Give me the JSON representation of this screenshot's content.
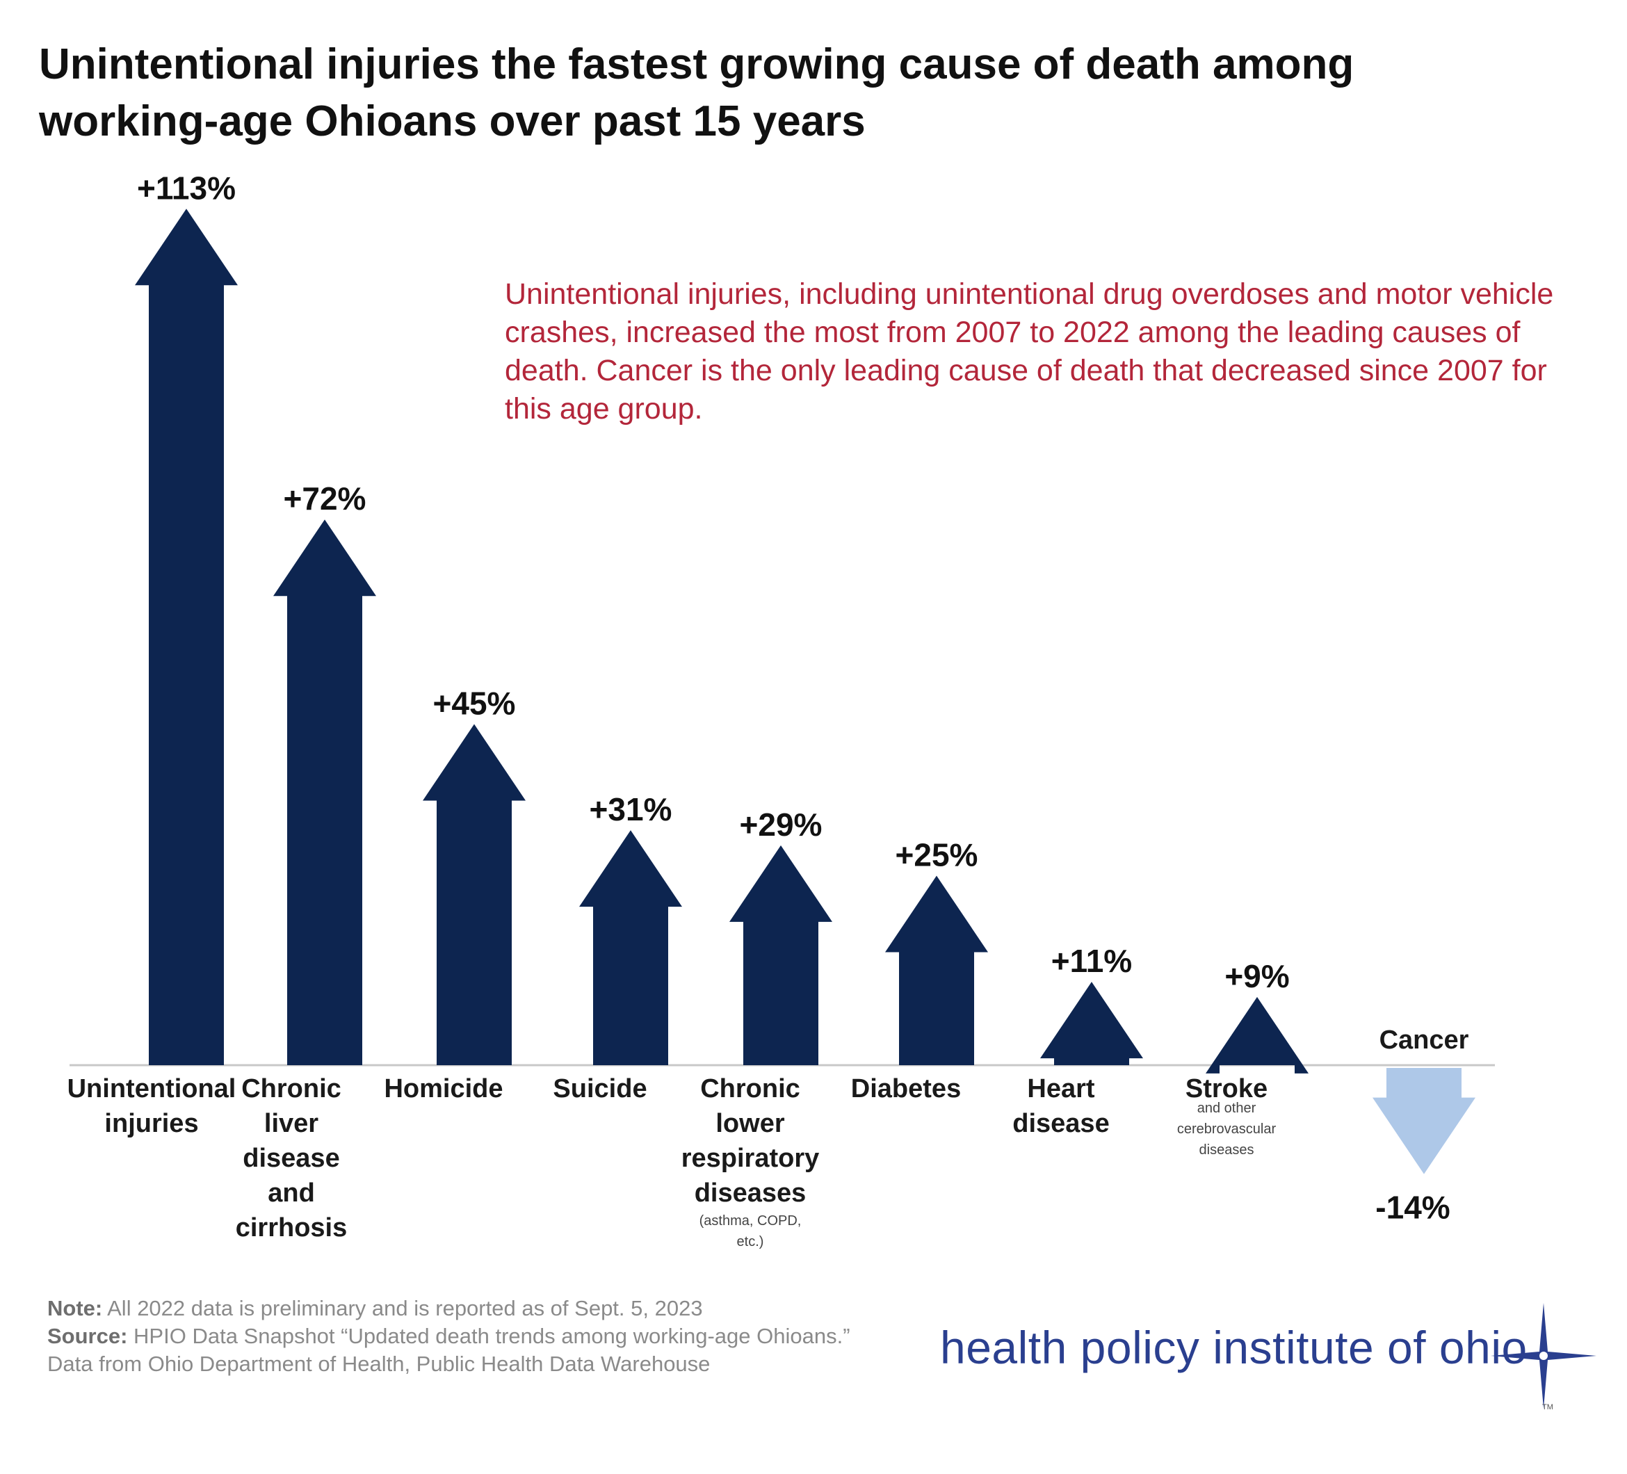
{
  "title": "Unintentional injuries the fastest growing cause of death among working-age Ohioans over past 15 years",
  "annotation": "Unintentional injuries, including unintentional drug overdoses and motor vehicle crashes, increased the most from 2007 to 2022 among the leading causes of death. Cancer is the only leading cause of death that decreased since 2007 for this age group.",
  "note": {
    "label": "Note:",
    "text": "All 2022 data is preliminary and is reported as of Sept. 5, 2023"
  },
  "source": {
    "label": "Source:",
    "text": "HPIO Data Snapshot “Updated death trends among working-age Ohioans.” Data from Ohio Department of Health, Public Health Data Warehouse"
  },
  "logo": {
    "text": "health policy institute of ohio",
    "trademark": "TM",
    "color": "#2a3f8f"
  },
  "colors": {
    "increase": "#0d2550",
    "decrease": "#aec8e8",
    "annotation": "#b3263a"
  },
  "chart_data": {
    "type": "bar",
    "title": "Unintentional injuries the fastest growing cause of death among working-age Ohioans over past 15 years",
    "xlabel": "",
    "ylabel": "",
    "categories": [
      {
        "name": "Unintentional injuries",
        "lines": [
          "Unintentional",
          "injuries"
        ],
        "sub": []
      },
      {
        "name": "Chronic liver disease and cirrhosis",
        "lines": [
          "Chronic",
          "liver",
          "disease",
          "and",
          "cirrhosis"
        ],
        "sub": []
      },
      {
        "name": "Homicide",
        "lines": [
          "Homicide"
        ],
        "sub": []
      },
      {
        "name": "Suicide",
        "lines": [
          "Suicide"
        ],
        "sub": []
      },
      {
        "name": "Chronic lower respiratory diseases",
        "lines": [
          "Chronic",
          "lower",
          "respiratory",
          "diseases"
        ],
        "sub": [
          "(asthma, COPD,",
          "etc.)"
        ]
      },
      {
        "name": "Diabetes",
        "lines": [
          "Diabetes"
        ],
        "sub": []
      },
      {
        "name": "Heart disease",
        "lines": [
          "Heart",
          "disease"
        ],
        "sub": []
      },
      {
        "name": "Stroke",
        "lines": [
          "Stroke"
        ],
        "sub": [
          "and other",
          "cerebrovascular",
          "diseases"
        ]
      },
      {
        "name": "Cancer",
        "lines": [
          "Cancer"
        ],
        "sub": []
      }
    ],
    "values": [
      113,
      72,
      45,
      31,
      29,
      25,
      11,
      9,
      -14
    ],
    "value_labels": [
      "+113%",
      "+72%",
      "+45%",
      "+31%",
      "+29%",
      "+25%",
      "+11%",
      "+9%",
      "-14%"
    ],
    "units": "percent change",
    "grid": false,
    "legend": "none"
  }
}
